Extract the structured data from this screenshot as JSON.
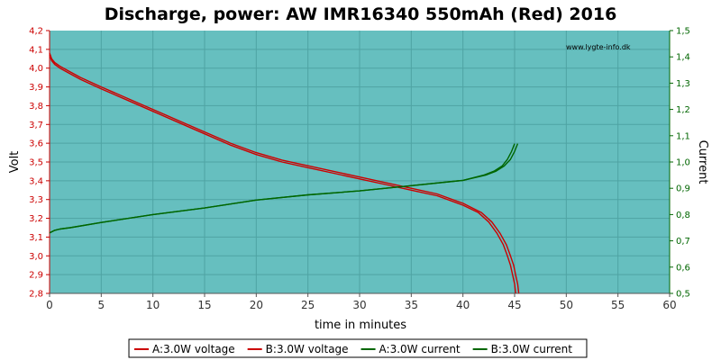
{
  "chart_data": {
    "type": "line",
    "title": "Discharge, power: AW IMR16340 550mAh (Red) 2016",
    "watermark": "www.lygte-info.dk",
    "xlabel": "time in minutes",
    "ylabel_left": "Volt",
    "ylabel_right": "Current",
    "xlim": [
      0,
      60
    ],
    "ylim_left": [
      2.8,
      4.2
    ],
    "ylim_right": [
      0.5,
      1.5
    ],
    "x_ticks": [
      "0",
      "5",
      "10",
      "15",
      "20",
      "25",
      "30",
      "35",
      "40",
      "45",
      "50",
      "55",
      "60"
    ],
    "y_left_ticks": [
      "2,8",
      "2,9",
      "3,0",
      "3,1",
      "3,2",
      "3,3",
      "3,4",
      "3,5",
      "3,6",
      "3,7",
      "3,8",
      "3,9",
      "4,0",
      "4,1",
      "4,2"
    ],
    "y_right_ticks": [
      "0,5",
      "0,6",
      "0,7",
      "0,8",
      "0,9",
      "1,0",
      "1,1",
      "1,2",
      "1,3",
      "1,4",
      "1,5"
    ],
    "grid": true,
    "legend_position": "bottom",
    "colors": {
      "plot_background": "#66bfbf",
      "grid": "#4fa3a3",
      "voltage": "#cc0000",
      "current": "#006600",
      "left_axis_text": "#cc0000",
      "right_axis_text": "#006600"
    },
    "series": [
      {
        "name": "A:3.0W voltage",
        "axis": "left",
        "color": "#cc0000",
        "x": [
          0,
          0.2,
          0.5,
          1,
          2,
          3,
          5,
          7.5,
          10,
          12.5,
          15,
          17.5,
          20,
          22.5,
          25,
          27.5,
          30,
          32.5,
          35,
          37.5,
          40,
          41.5,
          42.5,
          43.3,
          43.9,
          44.3,
          44.6,
          44.8,
          45.0,
          45.1
        ],
        "y": [
          4.07,
          4.04,
          4.02,
          4.0,
          3.97,
          3.94,
          3.89,
          3.83,
          3.77,
          3.71,
          3.65,
          3.59,
          3.54,
          3.5,
          3.47,
          3.44,
          3.41,
          3.38,
          3.35,
          3.32,
          3.27,
          3.23,
          3.18,
          3.12,
          3.06,
          3.0,
          2.95,
          2.9,
          2.85,
          2.8
        ]
      },
      {
        "name": "B:3.0W voltage",
        "axis": "left",
        "color": "#cc0000",
        "x": [
          0,
          0.2,
          0.5,
          1,
          2,
          3,
          5,
          7.5,
          10,
          12.5,
          15,
          17.5,
          20,
          22.5,
          25,
          27.5,
          30,
          32.5,
          35,
          37.5,
          40,
          41.8,
          42.8,
          43.6,
          44.2,
          44.6,
          44.9,
          45.1,
          45.3,
          45.4
        ],
        "y": [
          4.08,
          4.05,
          4.03,
          4.01,
          3.98,
          3.95,
          3.9,
          3.84,
          3.78,
          3.72,
          3.66,
          3.6,
          3.55,
          3.51,
          3.48,
          3.45,
          3.42,
          3.39,
          3.36,
          3.33,
          3.28,
          3.23,
          3.18,
          3.12,
          3.06,
          3.0,
          2.95,
          2.9,
          2.85,
          2.8
        ]
      },
      {
        "name": "A:3.0W current",
        "axis": "right",
        "color": "#006600",
        "x": [
          0,
          0.5,
          1,
          2,
          5,
          10,
          15,
          20,
          25,
          30,
          35,
          40,
          42,
          43,
          43.8,
          44.3,
          44.7,
          45.0
        ],
        "y": [
          0.73,
          0.74,
          0.745,
          0.75,
          0.77,
          0.8,
          0.825,
          0.855,
          0.875,
          0.89,
          0.91,
          0.93,
          0.95,
          0.965,
          0.985,
          1.01,
          1.04,
          1.07
        ]
      },
      {
        "name": "B:3.0W current",
        "axis": "right",
        "color": "#006600",
        "x": [
          0,
          0.5,
          1,
          2,
          5,
          10,
          15,
          20,
          25,
          30,
          35,
          40,
          42.2,
          43.2,
          44.0,
          44.6,
          45.0,
          45.3
        ],
        "y": [
          0.73,
          0.74,
          0.745,
          0.75,
          0.77,
          0.8,
          0.825,
          0.855,
          0.875,
          0.89,
          0.91,
          0.93,
          0.95,
          0.965,
          0.985,
          1.01,
          1.04,
          1.07
        ]
      }
    ]
  }
}
